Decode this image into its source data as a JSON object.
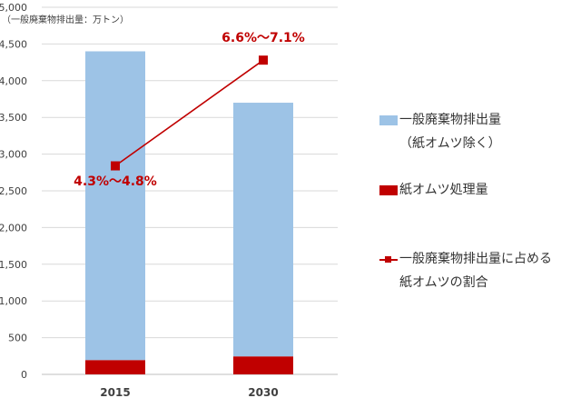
{
  "chart_data": {
    "type": "bar",
    "unit_label": "（一般廃棄物排出量：万トン）",
    "categories": [
      "2015",
      "2030"
    ],
    "ylim": [
      0,
      5000
    ],
    "yticks": [
      0,
      500,
      1000,
      1500,
      2000,
      2500,
      3000,
      3500,
      4000,
      4500,
      5000
    ],
    "ytick_labels": [
      "0",
      "500",
      "1,000",
      "1,500",
      "2,000",
      "2,500",
      "3,000",
      "3,500",
      "4,000",
      "4,500",
      "5,000"
    ],
    "grid": true,
    "stacked": true,
    "series": [
      {
        "name": "紙オムツ処理量",
        "type": "bar",
        "color": "#c00000",
        "values": [
          195,
          245
        ]
      },
      {
        "name": "一般廃棄物排出量（紙オムツ除く）",
        "type": "bar",
        "color": "#9dc3e6",
        "values": [
          4205,
          3455
        ]
      },
      {
        "name": "一般廃棄物排出量に占める紙オムツの割合",
        "type": "line",
        "color": "#c00000",
        "values": [
          2840,
          4280
        ],
        "labels": [
          "4.3%～4.8%",
          "6.6%～7.1%"
        ]
      }
    ],
    "legend_position": "right"
  },
  "legend": {
    "items": [
      {
        "line1": "一般廃棄物排出量",
        "line2": "（紙オムツ除く）"
      },
      {
        "line1": "紙オムツ処理量"
      },
      {
        "line1": "一般廃棄物排出量に占める",
        "line2": "紙オムツの割合"
      }
    ]
  }
}
